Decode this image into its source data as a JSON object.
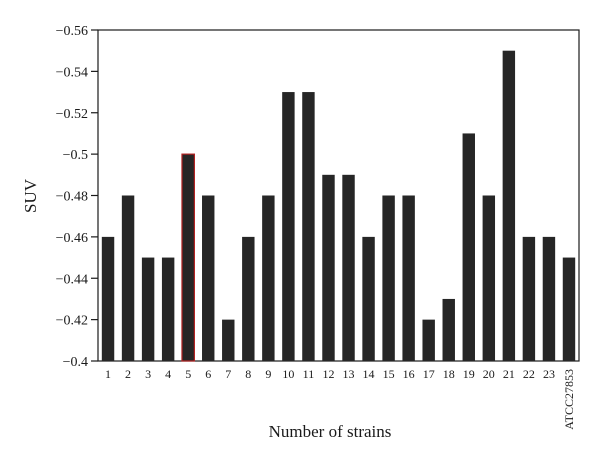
{
  "chart_data": {
    "type": "bar",
    "title": "",
    "xlabel": "Number of strains",
    "ylabel": "SUV",
    "categories": [
      "1",
      "2",
      "3",
      "4",
      "5",
      "6",
      "7",
      "8",
      "9",
      "10",
      "11",
      "12",
      "13",
      "14",
      "15",
      "16",
      "17",
      "18",
      "19",
      "20",
      "21",
      "22",
      "23",
      "ATCC27853"
    ],
    "values": [
      -0.46,
      -0.48,
      -0.45,
      -0.45,
      -0.5,
      -0.48,
      -0.42,
      -0.46,
      -0.48,
      -0.53,
      -0.53,
      -0.49,
      -0.49,
      -0.46,
      -0.48,
      -0.48,
      -0.42,
      -0.43,
      -0.51,
      -0.48,
      -0.55,
      -0.46,
      -0.46,
      -0.45
    ],
    "ylim": [
      -0.4,
      -0.56
    ],
    "yticks": [
      -0.56,
      -0.54,
      -0.52,
      -0.5,
      -0.48,
      -0.46,
      -0.44,
      -0.42,
      -0.4
    ],
    "ytick_labels": [
      "−0.56",
      "−0.54",
      "−0.52",
      "−0.5",
      "−0.48",
      "−0.46",
      "−0.44",
      "−0.42",
      "−0.4"
    ],
    "y_axis_inverted": true,
    "grid": false,
    "bar_color": "#262626",
    "highlight_index": 4,
    "highlight_edge_color": "#b22222"
  }
}
